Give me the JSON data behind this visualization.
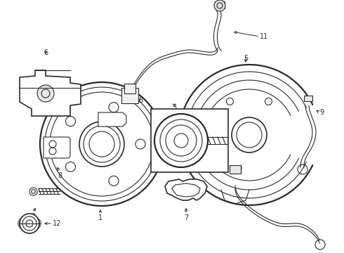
{
  "bg_color": "#ffffff",
  "lc": "#2a2a2a",
  "figsize": [
    4.9,
    3.6
  ],
  "dpi": 100,
  "xlim": [
    0,
    490
  ],
  "ylim": [
    0,
    360
  ]
}
